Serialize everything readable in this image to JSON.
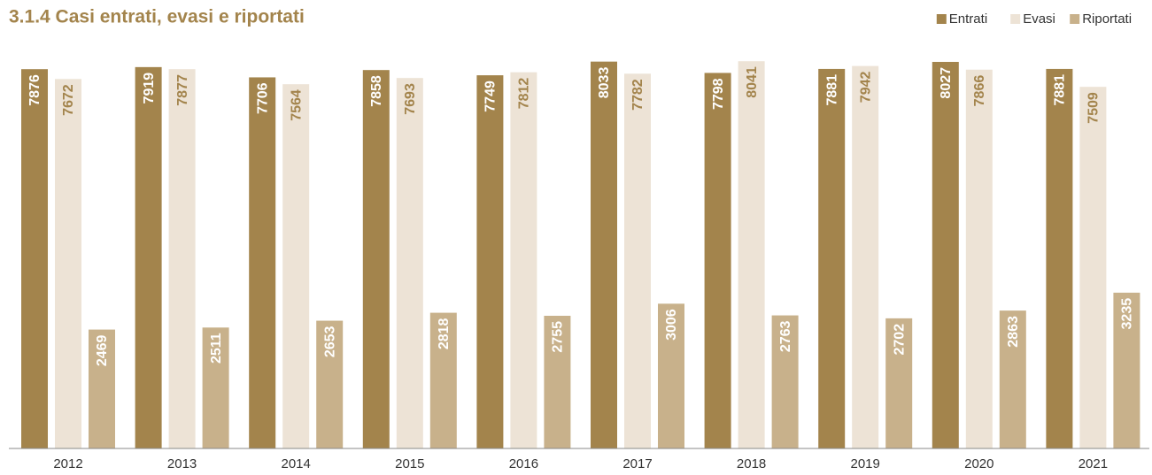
{
  "chart_data": {
    "type": "bar",
    "title": "3.1.4 Casi entrati, evasi e riportati",
    "categories": [
      "2012",
      "2013",
      "2014",
      "2015",
      "2016",
      "2017",
      "2018",
      "2019",
      "2020",
      "2021"
    ],
    "series": [
      {
        "name": "Entrati",
        "color": "#a3844c",
        "values": [
          7876,
          7919,
          7706,
          7858,
          7749,
          8033,
          7798,
          7881,
          8027,
          7881
        ]
      },
      {
        "name": "Evasi",
        "color": "#ede3d6",
        "values": [
          7672,
          7877,
          7564,
          7693,
          7812,
          7782,
          8041,
          7942,
          7866,
          7509
        ]
      },
      {
        "name": "Riportati",
        "color": "#c8b18b",
        "values": [
          2469,
          2511,
          2653,
          2818,
          2755,
          3006,
          2763,
          2702,
          2863,
          3235
        ]
      }
    ],
    "ylim": [
      0,
      8100
    ],
    "legend": "top-right"
  }
}
